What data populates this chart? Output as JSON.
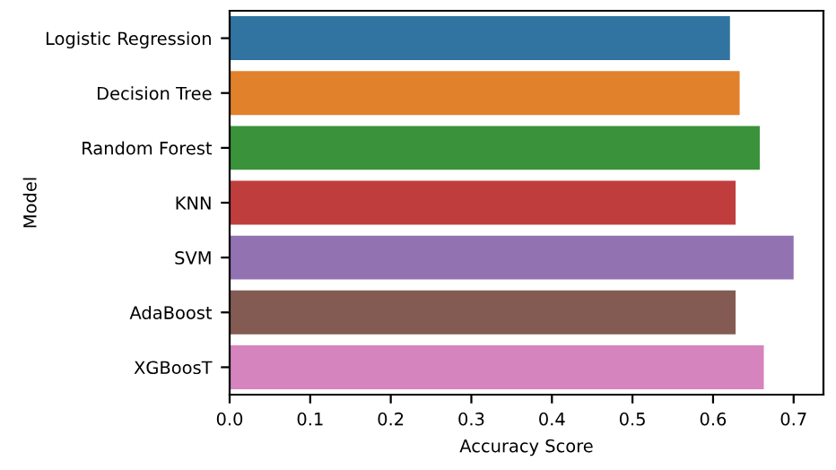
{
  "chart_data": {
    "type": "bar",
    "orientation": "horizontal",
    "xlabel": "Accuracy Score",
    "ylabel": "Model",
    "categories": [
      "Logistic Regression",
      "Decision Tree",
      "Random Forest",
      "KNN",
      "SVM",
      "AdaBoost",
      "XGBoosT"
    ],
    "values": [
      0.621,
      0.633,
      0.658,
      0.628,
      0.7,
      0.628,
      0.663
    ],
    "colors": [
      "#3274a1",
      "#e1812c",
      "#3a923a",
      "#c03d3e",
      "#9372b2",
      "#845b53",
      "#d684bd"
    ],
    "xlim": [
      0,
      0.737
    ],
    "xticks": [
      {
        "value": 0,
        "label": "0.0"
      },
      0.1,
      0.2,
      0.3,
      0.4,
      0.5,
      0.6,
      0.7
    ],
    "grid": false
  }
}
